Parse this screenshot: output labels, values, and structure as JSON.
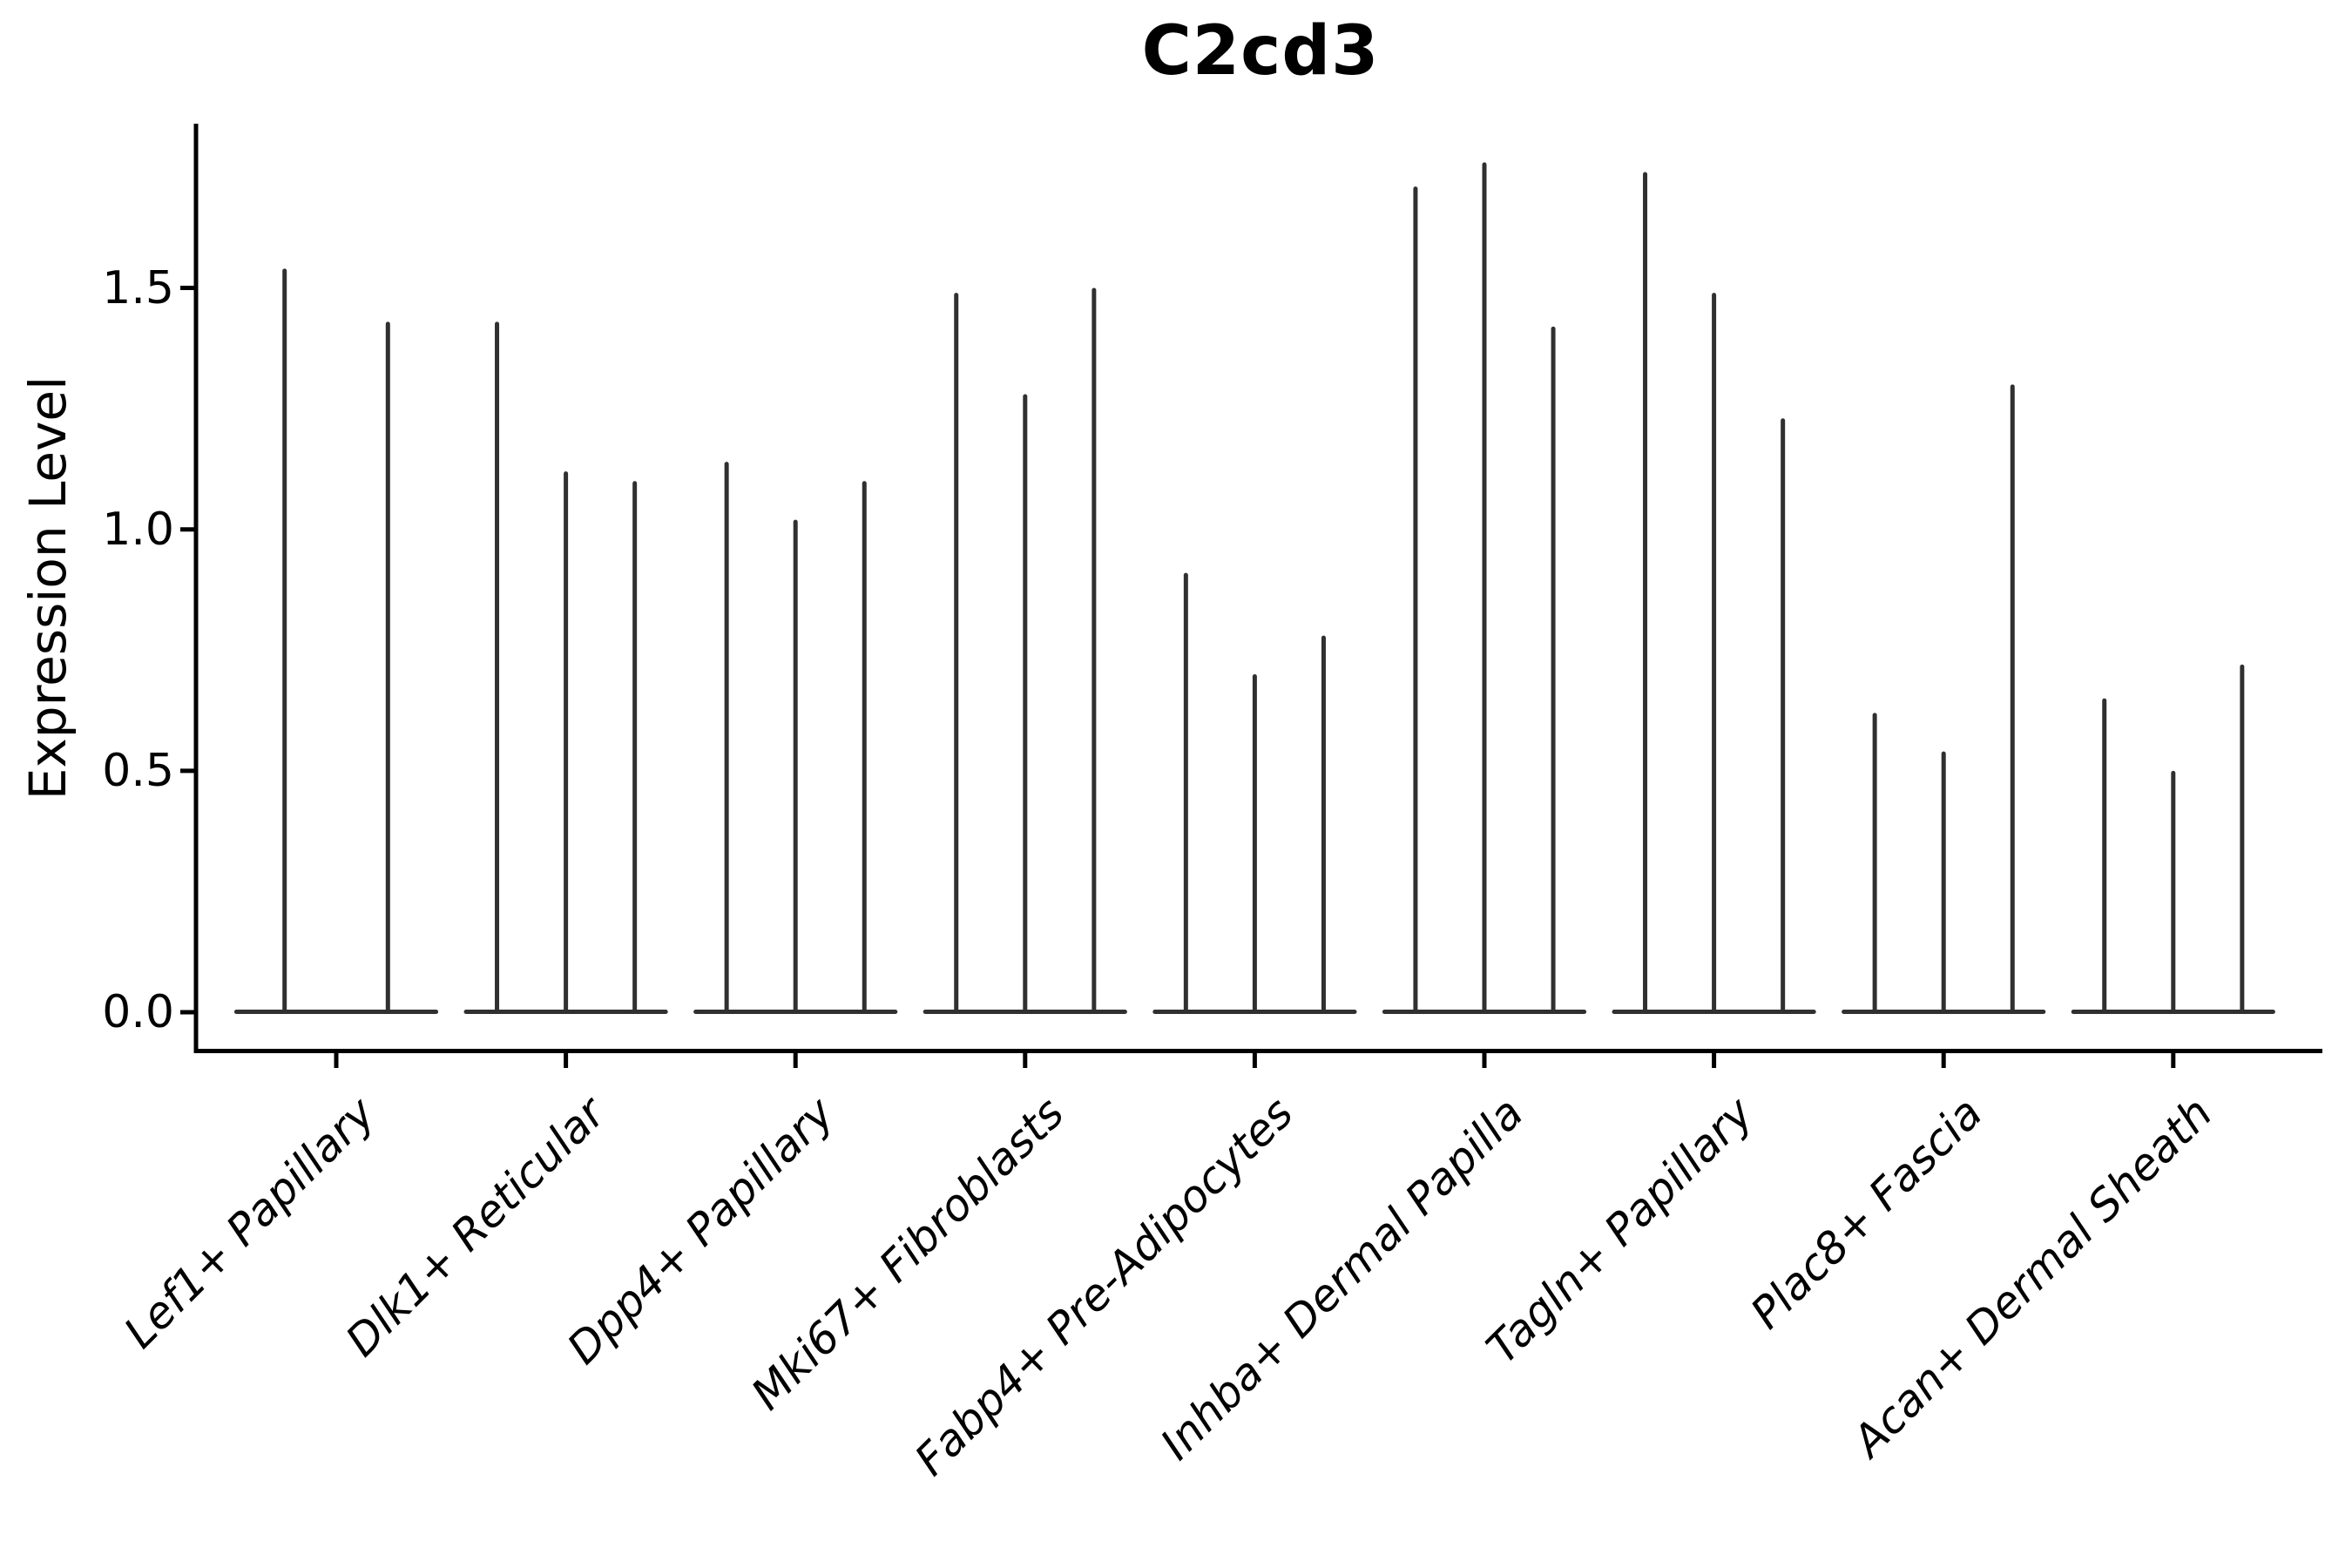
{
  "title": "C2cd3",
  "ylabel": "Expression Level",
  "chart_data": {
    "type": "violin",
    "title": "C2cd3",
    "xlabel": "",
    "ylabel": "Expression Level",
    "ylim": [
      0,
      1.84
    ],
    "yticks": [
      0.0,
      0.5,
      1.0,
      1.5
    ],
    "ytick_labels": [
      "0.0",
      "0.5",
      "1.0",
      "1.5"
    ],
    "grid": false,
    "legend_position": "none",
    "violin_color": "#303030",
    "axis_color": "#000000",
    "note": "Each category shows thin violins; nearly all density sits at 0 (flat base) with a thin spike up to the max expression value per violin.",
    "categories": [
      "Lef1+ Papillary",
      "Dlk1+ Reticular",
      "Dpp4+ Papillary",
      "Mki67+ Fibroblasts",
      "Fabp4+ Pre-Adipocytes",
      "Inhba+ Dermal Papilla",
      "Tagln+ Papillary",
      "Plac8+ Fascia",
      "Acan+ Dermal Sheath"
    ],
    "series": [
      {
        "category": "Lef1+ Papillary",
        "violin_max_values": [
          1.54,
          1.43
        ]
      },
      {
        "category": "Dlk1+ Reticular",
        "violin_max_values": [
          1.43,
          1.12,
          1.1
        ]
      },
      {
        "category": "Dpp4+ Papillary",
        "violin_max_values": [
          1.14,
          1.02,
          1.1
        ]
      },
      {
        "category": "Mki67+ Fibroblasts",
        "violin_max_values": [
          1.49,
          1.28,
          1.5
        ]
      },
      {
        "category": "Fabp4+ Pre-Adipocytes",
        "violin_max_values": [
          0.91,
          0.7,
          0.78
        ]
      },
      {
        "category": "Inhba+ Dermal Papilla",
        "violin_max_values": [
          1.71,
          1.76,
          1.42
        ]
      },
      {
        "category": "Tagln+ Papillary",
        "violin_max_values": [
          1.74,
          1.49,
          1.23
        ]
      },
      {
        "category": "Plac8+ Fascia",
        "violin_max_values": [
          0.62,
          0.54,
          1.3
        ]
      },
      {
        "category": "Acan+ Dermal Sheath",
        "violin_max_values": [
          0.65,
          0.5,
          0.72
        ]
      }
    ]
  }
}
